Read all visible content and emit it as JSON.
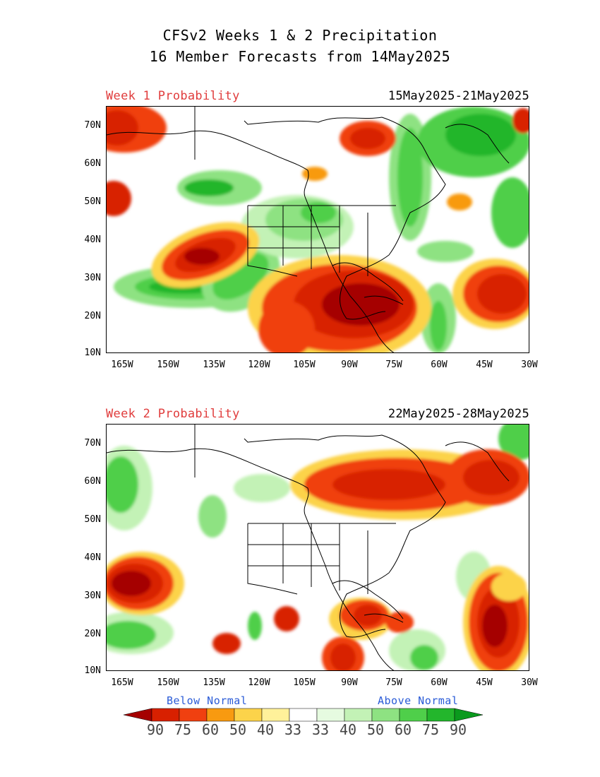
{
  "title_line1": "CFSv2 Weeks 1 & 2 Precipitation",
  "title_line2": "16 Member Forecasts from 14May2025",
  "panels": [
    {
      "label": "Week 1 Probability",
      "date_range": "15May2025-21May2025"
    },
    {
      "label": "Week 2 Probability",
      "date_range": "22May2025-28May2025"
    }
  ],
  "y_ticks": [
    "70N",
    "60N",
    "50N",
    "40N",
    "30N",
    "20N",
    "10N"
  ],
  "x_ticks": [
    "165W",
    "150W",
    "135W",
    "120W",
    "105W",
    "90W",
    "75W",
    "60W",
    "45W",
    "30W"
  ],
  "legend": {
    "below_label": "Below Normal",
    "above_label": "Above Normal",
    "values": [
      "90",
      "75",
      "60",
      "50",
      "40",
      "33",
      "33",
      "40",
      "50",
      "60",
      "75",
      "90"
    ],
    "colors": [
      "#a50000",
      "#d82000",
      "#f04010",
      "#f89a10",
      "#fcd34a",
      "#fff19a",
      "#ffffff",
      "#e6fbe0",
      "#c3f2b6",
      "#8ee282",
      "#4fcf4a",
      "#23b62c",
      "#0a9a1d"
    ]
  }
}
